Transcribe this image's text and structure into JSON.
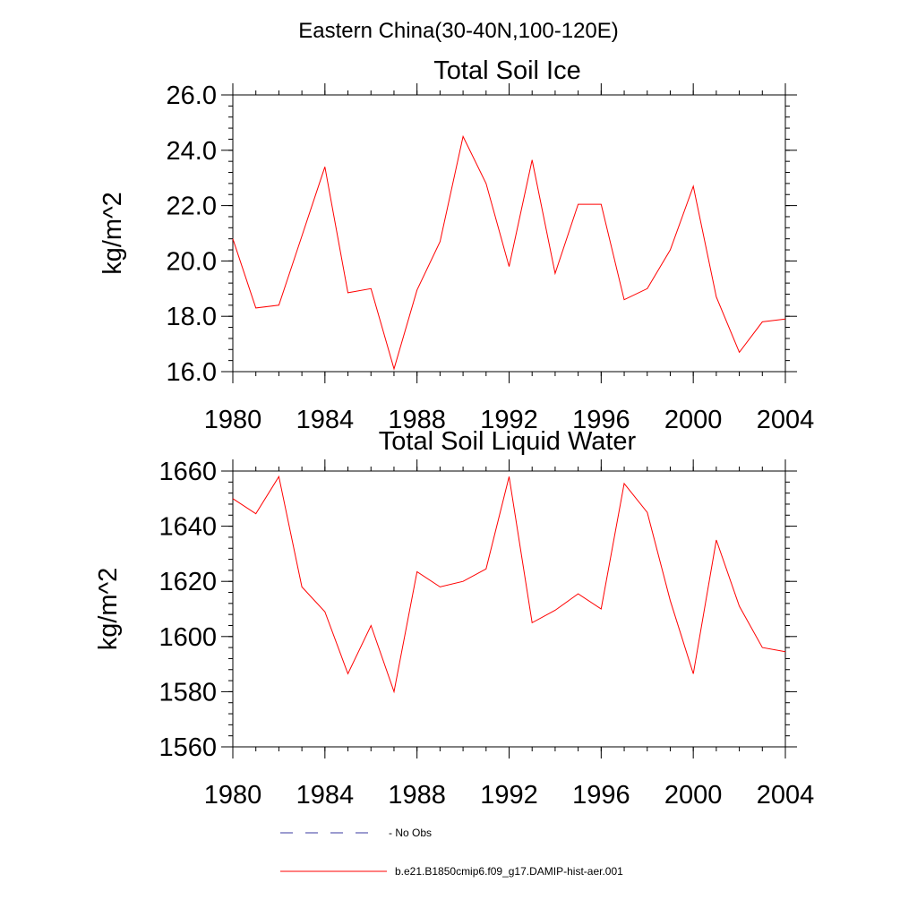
{
  "figure": {
    "suptitle": "Eastern China(30-40N,100-120E)"
  },
  "colors": {
    "model": "#ff0000",
    "obs": "#3a3aa0",
    "axes": "#000000"
  },
  "legend": {
    "obs_label": "- No Obs",
    "model_label": "b.e21.B1850cmip6.f09_g17.DAMIP-hist-aer.001"
  },
  "chart_data": [
    {
      "type": "line",
      "title": "Total Soil Ice",
      "xlabel": "",
      "ylabel": "kg/m^2",
      "xlim": [
        1980,
        2004
      ],
      "ylim": [
        16,
        26
      ],
      "x_ticks": [
        1980,
        1984,
        1988,
        1992,
        1996,
        2000,
        2004
      ],
      "x_tick_labels": [
        "1980",
        "1984",
        "1988",
        "1992",
        "1996",
        "2000",
        "2004"
      ],
      "x_minor_step": 1,
      "y_ticks": [
        16,
        18,
        20,
        22,
        24,
        26
      ],
      "y_tick_labels": [
        "16.0",
        "18.0",
        "20.0",
        "22.0",
        "24.0",
        "26.0"
      ],
      "y_minor_step": 0.4,
      "grid": false,
      "x": [
        1980,
        1981,
        1982,
        1983,
        1984,
        1985,
        1986,
        1987,
        1988,
        1989,
        1990,
        1991,
        1992,
        1993,
        1994,
        1995,
        1996,
        1997,
        1998,
        1999,
        2000,
        2001,
        2002,
        2003,
        2004
      ],
      "series": [
        {
          "name": "b.e21.B1850cmip6.f09_g17.DAMIP-hist-aer.001",
          "color": "#ff0000",
          "values": [
            20.8,
            18.3,
            18.4,
            20.9,
            23.4,
            18.85,
            19.0,
            16.1,
            18.95,
            20.7,
            24.5,
            22.8,
            19.8,
            23.65,
            19.55,
            22.05,
            22.05,
            18.6,
            19.0,
            20.4,
            22.7,
            18.7,
            16.7,
            17.8,
            17.9
          ]
        }
      ]
    },
    {
      "type": "line",
      "title": "Total Soil Liquid Water",
      "xlabel": "",
      "ylabel": "kg/m^2",
      "xlim": [
        1980,
        2004
      ],
      "ylim": [
        1560,
        1660
      ],
      "x_ticks": [
        1980,
        1984,
        1988,
        1992,
        1996,
        2000,
        2004
      ],
      "x_tick_labels": [
        "1980",
        "1984",
        "1988",
        "1992",
        "1996",
        "2000",
        "2004"
      ],
      "x_minor_step": 1,
      "y_ticks": [
        1560,
        1580,
        1600,
        1620,
        1640,
        1660
      ],
      "y_tick_labels": [
        "1560",
        "1580",
        "1600",
        "1620",
        "1640",
        "1660"
      ],
      "y_minor_step": 4,
      "grid": false,
      "x": [
        1980,
        1981,
        1982,
        1983,
        1984,
        1985,
        1986,
        1987,
        1988,
        1989,
        1990,
        1991,
        1992,
        1993,
        1994,
        1995,
        1996,
        1997,
        1998,
        1999,
        2000,
        2001,
        2002,
        2003,
        2004
      ],
      "series": [
        {
          "name": "b.e21.B1850cmip6.f09_g17.DAMIP-hist-aer.001",
          "color": "#ff0000",
          "values": [
            1650,
            1644.5,
            1658,
            1618,
            1609,
            1586.5,
            1604,
            1580,
            1623.5,
            1618,
            1620,
            1624.5,
            1658,
            1605,
            1609.5,
            1615.5,
            1610,
            1655.5,
            1645,
            1613,
            1586.5,
            1635,
            1611,
            1596,
            1594.5
          ]
        }
      ]
    }
  ]
}
